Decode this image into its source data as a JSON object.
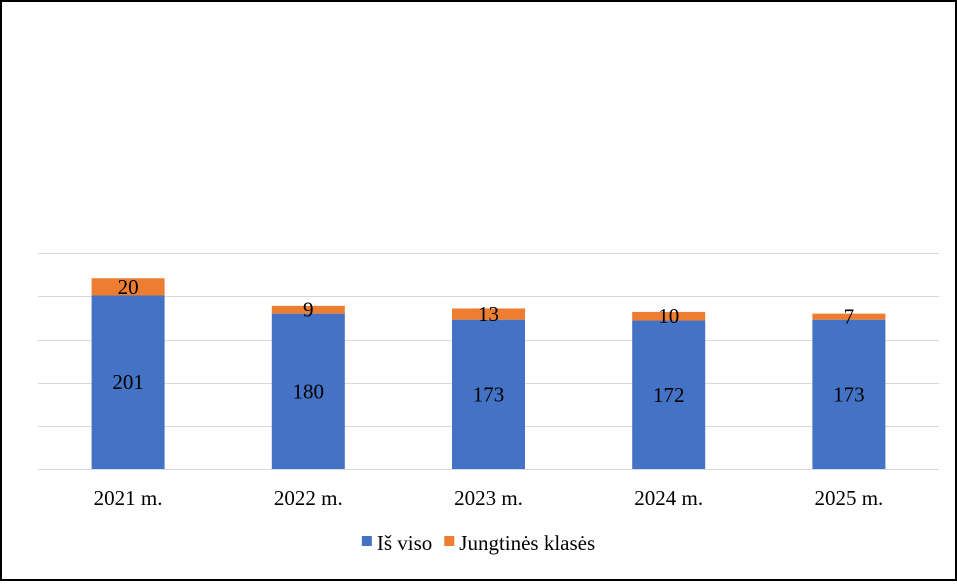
{
  "chart_data": {
    "type": "bar",
    "stacked": true,
    "categories": [
      "2021 m.",
      "2022 m.",
      "2023 m.",
      "2024 m.",
      "2025 m."
    ],
    "series": [
      {
        "name": "Iš viso",
        "color": "#4472C4",
        "values": [
          201,
          180,
          173,
          172,
          173
        ],
        "labels": [
          "201",
          "180",
          "173",
          "172",
          "173"
        ]
      },
      {
        "name": "Jungtinės klasės",
        "color": "#ED7D31",
        "values": [
          20,
          9,
          13,
          10,
          7
        ],
        "labels": [
          "20",
          "9",
          "13",
          "10",
          "7"
        ]
      }
    ],
    "title": "",
    "xlabel": "",
    "ylabel": "",
    "ylim": [
      0,
      250
    ],
    "y_axis_labels_visible": false,
    "grid": true,
    "legend_position": "bottom"
  }
}
